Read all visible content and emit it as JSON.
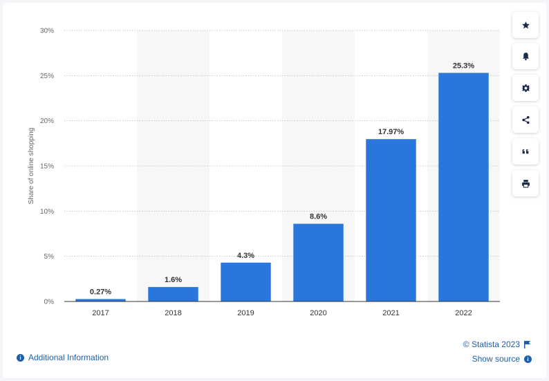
{
  "chart_data": {
    "type": "bar",
    "categories": [
      "2017",
      "2018",
      "2019",
      "2020",
      "2021",
      "2022"
    ],
    "values": [
      0.27,
      1.6,
      4.3,
      8.6,
      17.97,
      25.3
    ],
    "value_labels": [
      "0.27%",
      "1.6%",
      "4.3%",
      "8.6%",
      "17.97%",
      "25.3%"
    ],
    "title": "",
    "xlabel": "",
    "ylabel": "Share of online shopping",
    "ylim": [
      0,
      30
    ],
    "yticks": [
      0,
      5,
      10,
      15,
      20,
      25,
      30
    ],
    "ytick_labels": [
      "0%",
      "5%",
      "10%",
      "15%",
      "20%",
      "25%",
      "30%"
    ],
    "grid": true,
    "bar_color": "#2a77dc",
    "band_color": "#f7f7f7"
  },
  "toolbar": {
    "buttons": [
      {
        "name": "favorite-button",
        "icon": "star-icon"
      },
      {
        "name": "notification-button",
        "icon": "bell-icon"
      },
      {
        "name": "settings-button",
        "icon": "gear-icon"
      },
      {
        "name": "share-button",
        "icon": "share-icon"
      },
      {
        "name": "cite-button",
        "icon": "quote-icon"
      },
      {
        "name": "print-button",
        "icon": "printer-icon"
      }
    ]
  },
  "footer": {
    "credit": "© Statista 2023",
    "additional_info": "Additional Information",
    "show_source": "Show source"
  },
  "colors": {
    "accent": "#1f5ea8",
    "bar": "#2a77dc"
  }
}
